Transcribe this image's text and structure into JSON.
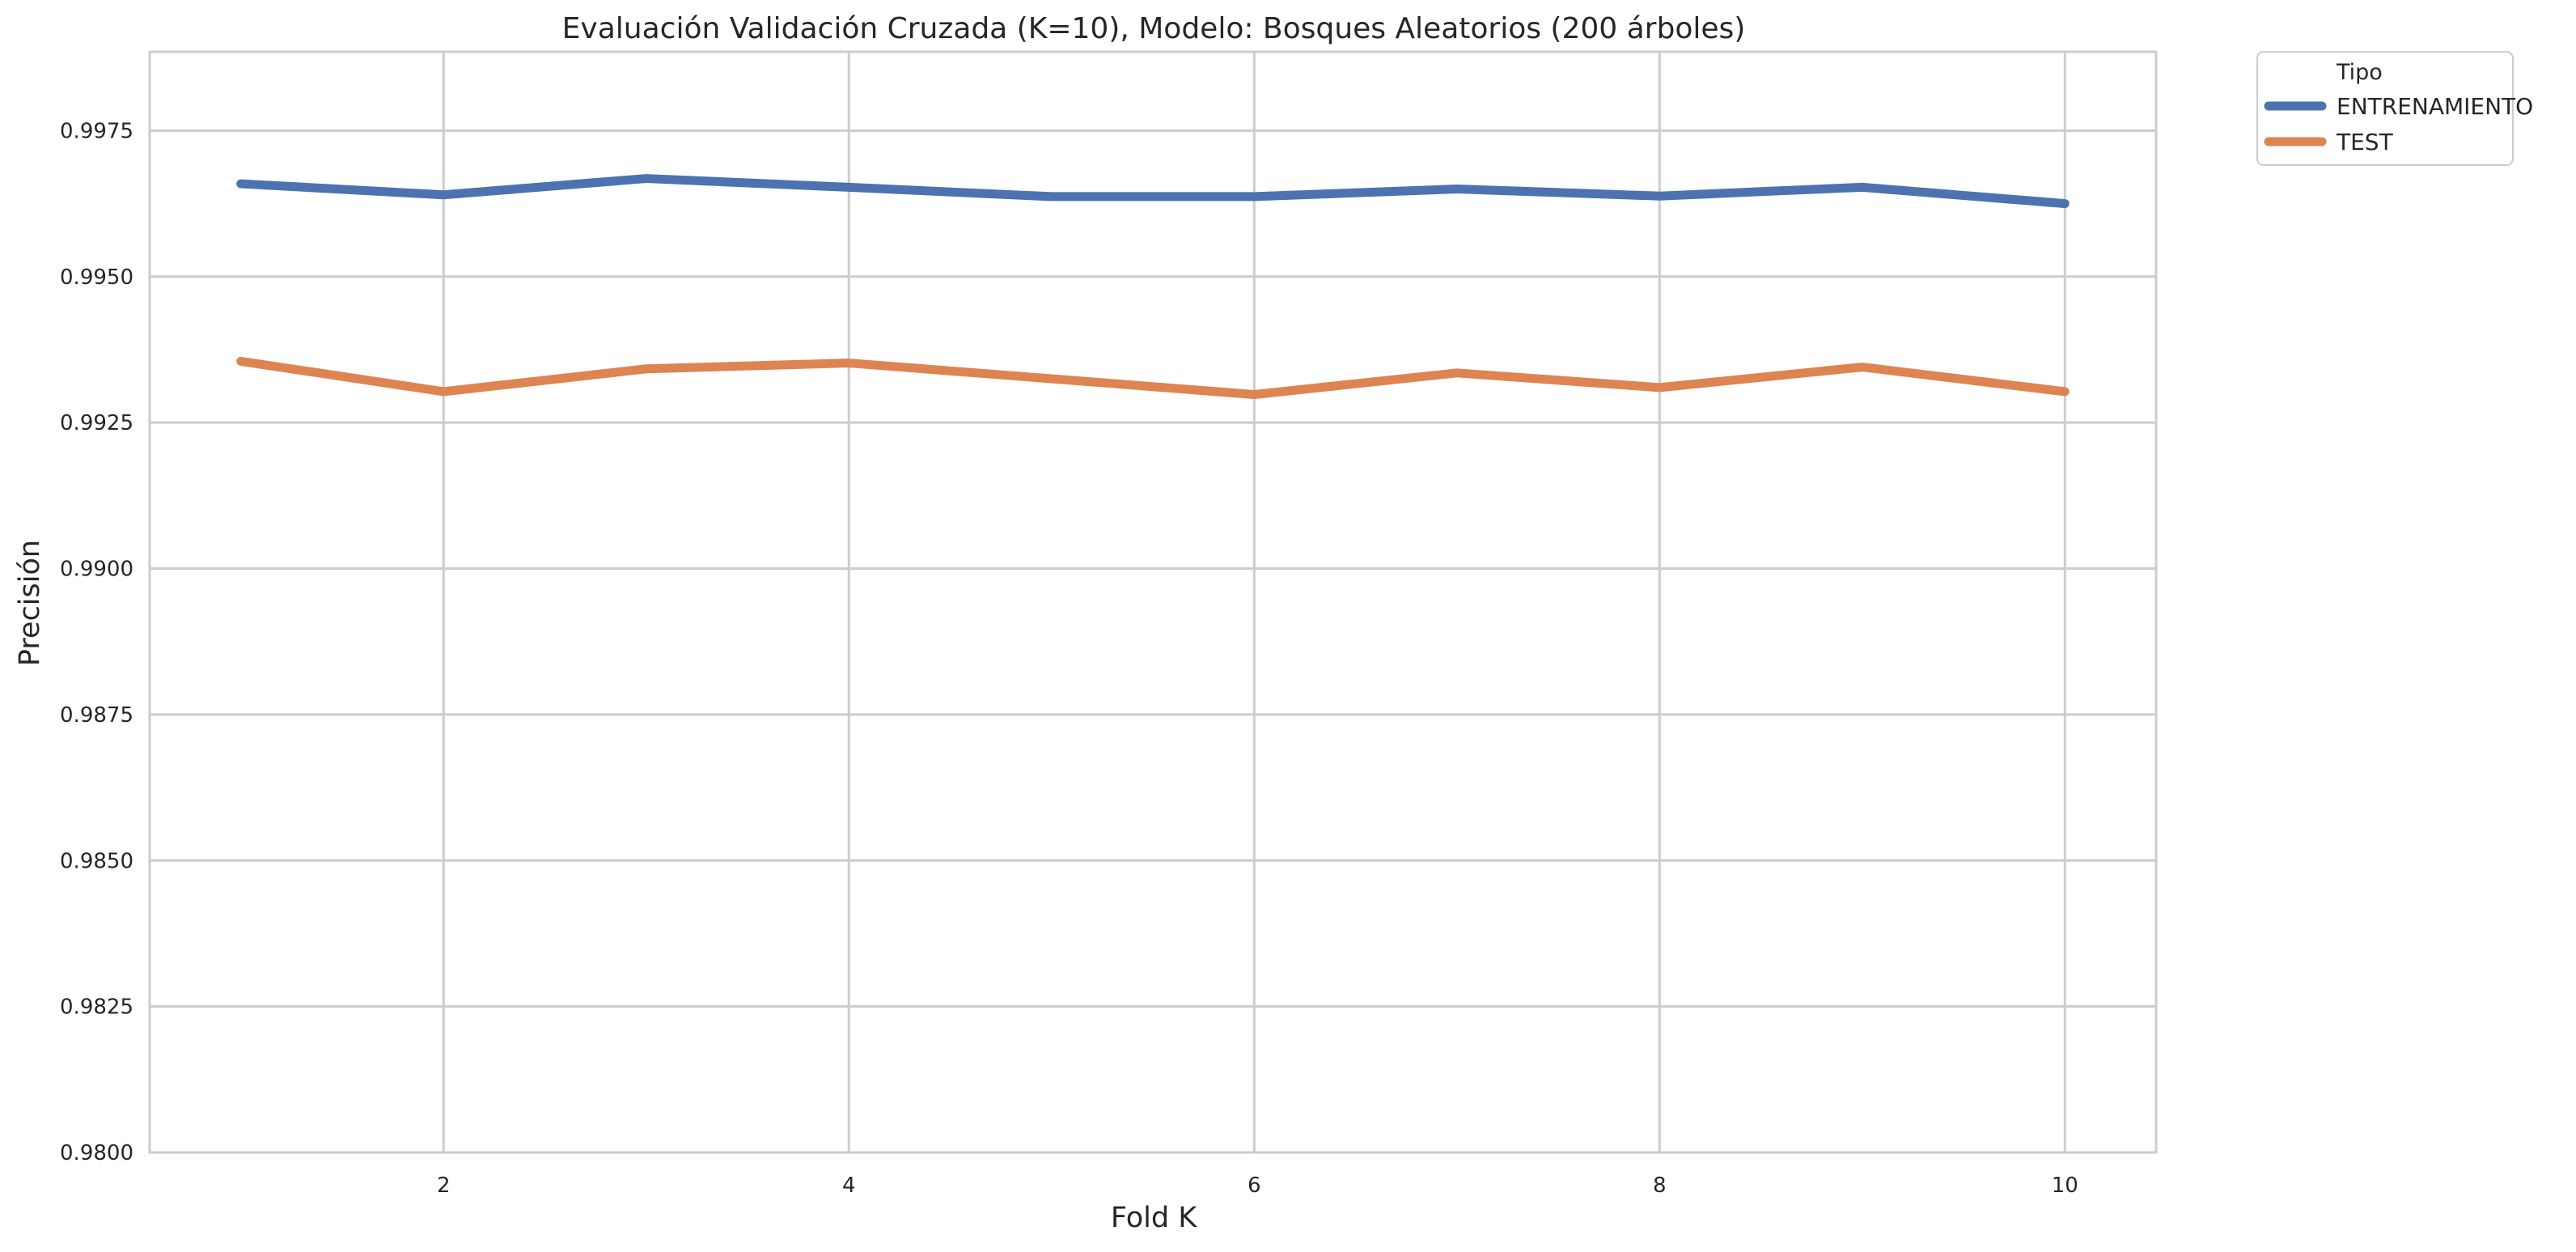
{
  "chart_data": {
    "type": "line",
    "title": "Evaluación Validación Cruzada (K=10), Modelo: Bosques Aleatorios (200 árboles)",
    "xlabel": "Fold K",
    "ylabel": "Precisión",
    "x": [
      1,
      2,
      3,
      4,
      5,
      6,
      7,
      8,
      9,
      10
    ],
    "xlim": [
      0.55,
      10.45
    ],
    "ylim": [
      0.98,
      0.99885
    ],
    "x_ticks": [
      2,
      4,
      6,
      8,
      10
    ],
    "x_tick_labels": [
      "2",
      "4",
      "6",
      "8",
      "10"
    ],
    "y_ticks": [
      0.98,
      0.9825,
      0.985,
      0.9875,
      0.99,
      0.9925,
      0.995,
      0.9975
    ],
    "y_tick_labels": [
      "0.9800",
      "0.9825",
      "0.9850",
      "0.9875",
      "0.9900",
      "0.9925",
      "0.9950",
      "0.9975"
    ],
    "grid": true,
    "legend_title": "Tipo",
    "legend_position": "outside-top-right",
    "series": [
      {
        "name": "ENTRENAMIENTO",
        "color": "#4c72b0",
        "values": [
          0.99659,
          0.9964,
          0.99668,
          0.99653,
          0.99637,
          0.99637,
          0.9965,
          0.99638,
          0.99653,
          0.99625
        ]
      },
      {
        "name": "TEST",
        "color": "#dd8452",
        "values": [
          0.99355,
          0.99303,
          0.99342,
          0.99352,
          0.99325,
          0.99298,
          0.99335,
          0.9931,
          0.99345,
          0.99303
        ]
      }
    ]
  }
}
